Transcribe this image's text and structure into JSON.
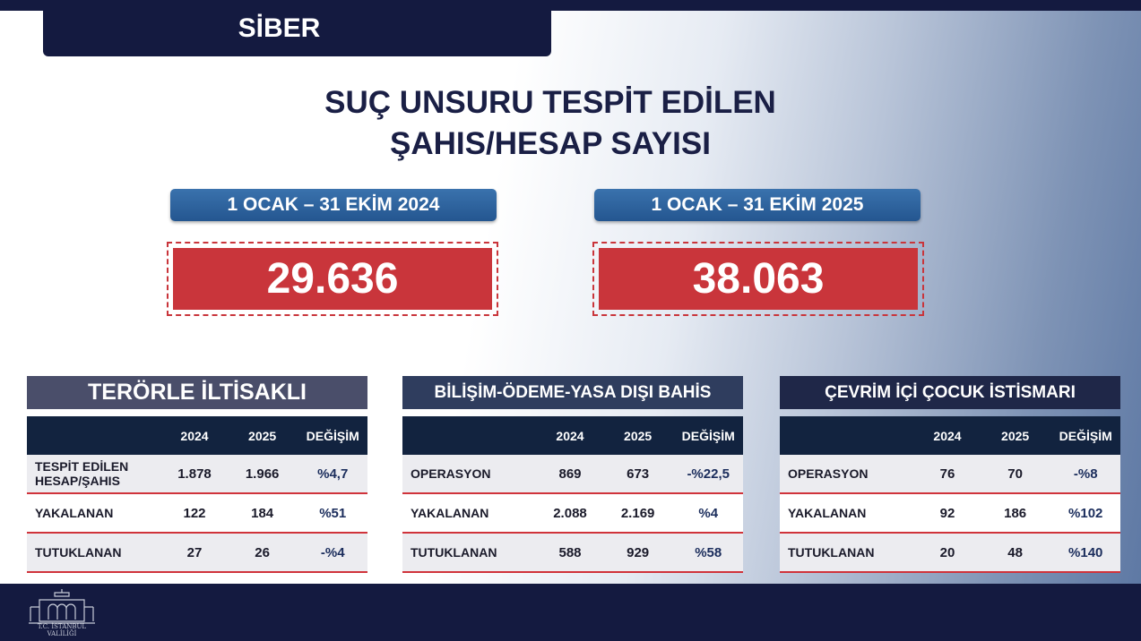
{
  "header": {
    "section": "SİBER",
    "title_line1": "SUÇ UNSURU TESPİT EDİLEN",
    "title_line2": "ŞAHIS/HESAP SAYISI"
  },
  "periods": [
    {
      "label": "1 OCAK – 31 EKİM 2024",
      "value": "29.636"
    },
    {
      "label": "1 OCAK – 31 EKİM 2025",
      "value": "38.063"
    }
  ],
  "columns": [
    "2024",
    "2025",
    "DEĞİŞİM"
  ],
  "tables": [
    {
      "title": "TERÖRLE İLTİSAKLI",
      "rows": [
        [
          "TESPİT EDİLEN HESAP/ŞAHIS",
          "1.878",
          "1.966",
          "%4,7"
        ],
        [
          "YAKALANAN",
          "122",
          "184",
          "%51"
        ],
        [
          "TUTUKLANAN",
          "27",
          "26",
          "-%4"
        ]
      ]
    },
    {
      "title": "BİLİŞİM-ÖDEME-YASA DIŞI BAHİS",
      "rows": [
        [
          "OPERASYON",
          "869",
          "673",
          "-%22,5"
        ],
        [
          "YAKALANAN",
          "2.088",
          "2.169",
          "%4"
        ],
        [
          "TUTUKLANAN",
          "588",
          "929",
          "%58"
        ]
      ]
    },
    {
      "title": "ÇEVRİM İÇİ ÇOCUK İSTİSMARI",
      "rows": [
        [
          "OPERASYON",
          "76",
          "70",
          "-%8"
        ],
        [
          "YAKALANAN",
          "92",
          "186",
          "%102"
        ],
        [
          "TUTUKLANAN",
          "20",
          "48",
          "%140"
        ]
      ]
    }
  ],
  "footer": {
    "logo_text": "T.C. İSTANBUL VALİLİĞİ"
  },
  "colors": {
    "navy": "#141a40",
    "red": "#c9353b",
    "blue": "#2a5f9a"
  }
}
